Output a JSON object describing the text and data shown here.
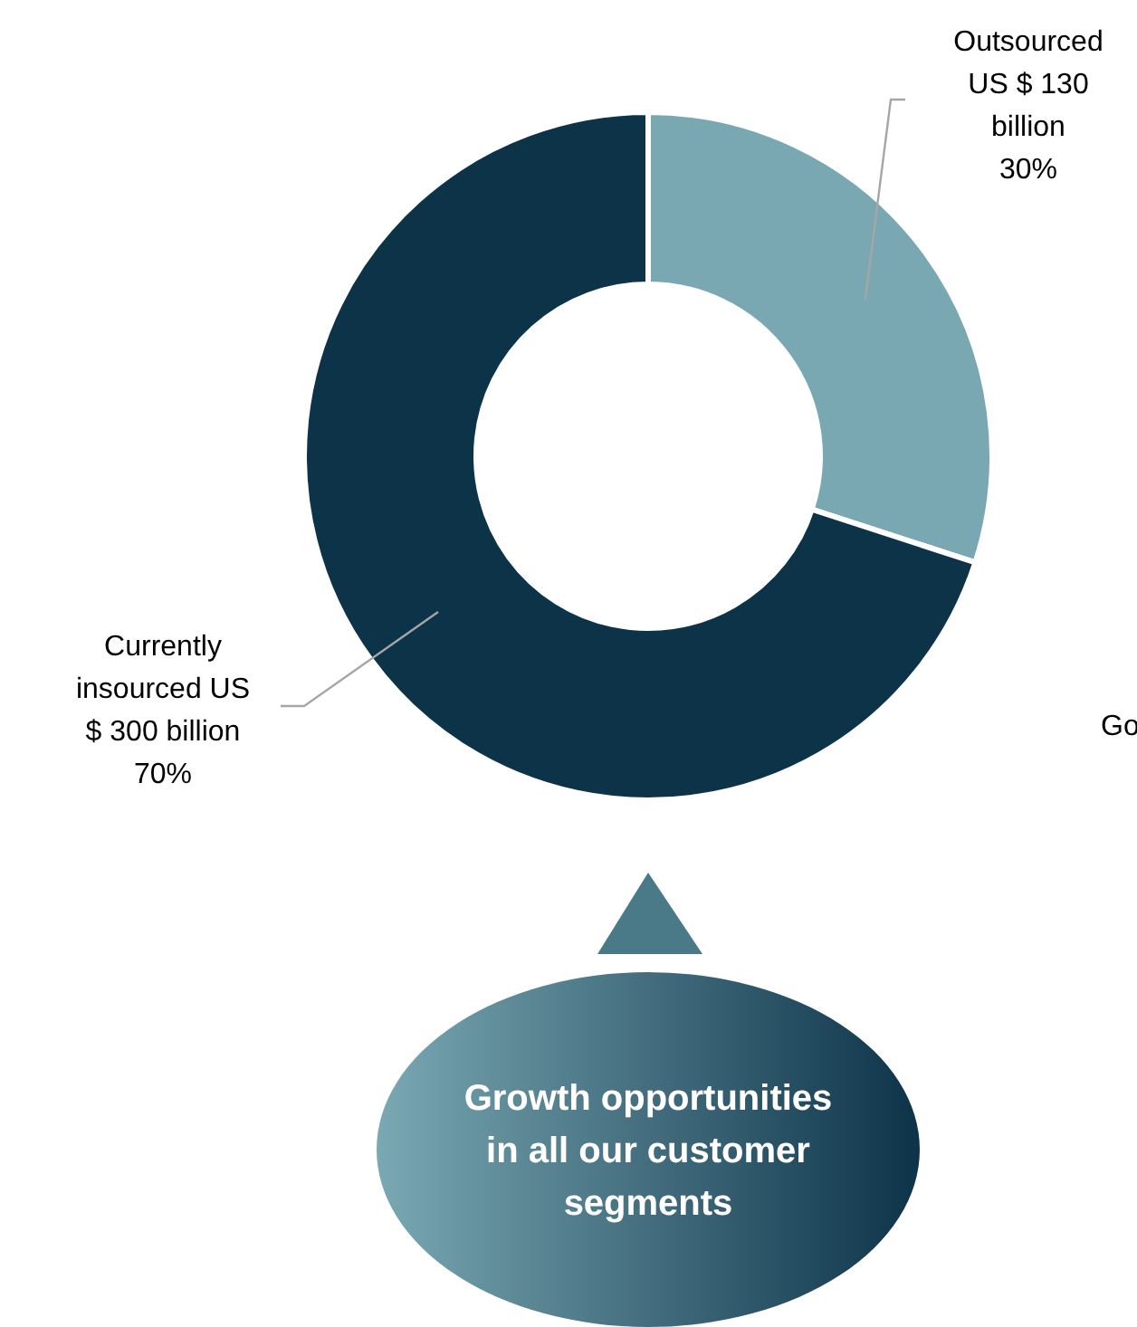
{
  "chart_data": {
    "type": "donut",
    "categories": [
      "Outsourced",
      "Currently insourced"
    ],
    "values": [
      30,
      70
    ],
    "value_labels": [
      "US $ 130 billion 30%",
      "US $ 300 billion 70%"
    ],
    "colors": [
      "#79a8b3",
      "#0d3349"
    ],
    "annotations": [
      "Growth opportunities in all our customer segments",
      "Go"
    ]
  }
}
